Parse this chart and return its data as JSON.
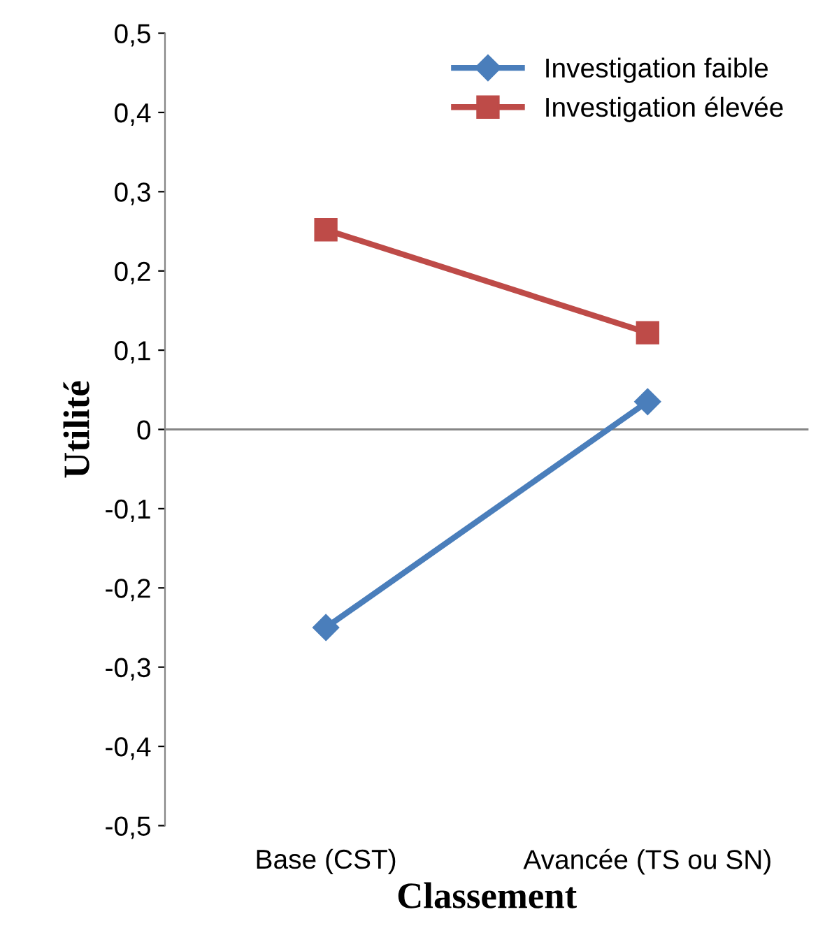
{
  "chart_data": {
    "type": "line",
    "xlabel": "Classement",
    "ylabel": "Utilité",
    "categories": [
      "Base (CST)",
      "Avancée (TS ou SN)"
    ],
    "series": [
      {
        "name": "Investigation faible",
        "color": "#4a7ebb",
        "marker": "diamond",
        "values": [
          -0.25,
          0.035
        ]
      },
      {
        "name": "Investigation élevée",
        "color": "#be4b48",
        "marker": "square",
        "values": [
          0.252,
          0.122
        ]
      }
    ],
    "ylim": [
      -0.5,
      0.5
    ],
    "yticks": [
      {
        "value": -0.5,
        "label": "-0,5"
      },
      {
        "value": -0.4,
        "label": "-0,4"
      },
      {
        "value": -0.3,
        "label": "-0,3"
      },
      {
        "value": -0.2,
        "label": "-0,2"
      },
      {
        "value": -0.1,
        "label": "-0,1"
      },
      0,
      {
        "value": 0.1,
        "label": "0,1"
      },
      {
        "value": 0.2,
        "label": "0,2"
      },
      {
        "value": 0.3,
        "label": "0,3"
      },
      {
        "value": 0.4,
        "label": "0,4"
      },
      {
        "value": 0.5,
        "label": "0,5"
      }
    ],
    "ref_lines": [
      {
        "axis": "y",
        "value": 0,
        "label": null,
        "color": "#868686"
      }
    ],
    "grid": false,
    "legend": "top right",
    "line_style": "solid"
  }
}
